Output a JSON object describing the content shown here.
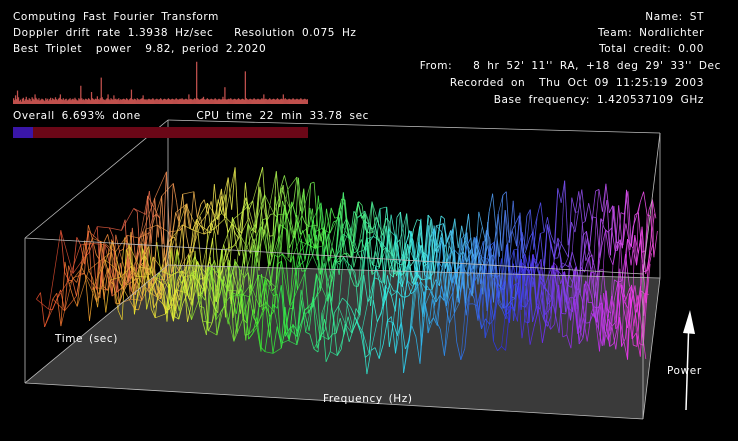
{
  "status": {
    "task": "Computing Fast Fourier Transform",
    "doppler_line": "Doppler drift rate 1.3938 Hz/sec   Resolution 0.075 Hz",
    "triplet_line": "Best Triplet  power  9.82, period 2.2020",
    "progress_line": "Overall 6.693% done        CPU time 22 min 33.78 sec",
    "progress_fraction": 0.0669,
    "progress_color": "#3a16a8",
    "progress_track_color": "#6b0717"
  },
  "user_info": {
    "name": "Name: ST",
    "team": "Team: Nordlichter",
    "credit": "Total credit: 0.00",
    "from": "From:   8 hr 52' 11'' RA, +18 deg 29' 33'' Dec",
    "recorded": "Recorded on  Thu Oct 09 11:25:19 2003",
    "base_frequency": "Base frequency: 1.420537109 GHz"
  },
  "triplet_graph": {
    "color": "#c0504d",
    "values": [
      0.12,
      0.08,
      0.18,
      0.1,
      0.28,
      0.14,
      0.06,
      0.09,
      0.05,
      0.11,
      0.13,
      0.07,
      0.1,
      0.15,
      0.09,
      0.08,
      0.12,
      0.1,
      0.06,
      0.14,
      0.11,
      0.09,
      0.2,
      0.13,
      0.1,
      0.08,
      0.12,
      0.07,
      0.09,
      0.11,
      0.1,
      0.08,
      0.06,
      0.12,
      0.09,
      0.11,
      0.07,
      0.1,
      0.13,
      0.08,
      0.12,
      0.1,
      0.09,
      0.14,
      0.1,
      0.08,
      0.11,
      0.13,
      0.2,
      0.1,
      0.09,
      0.12,
      0.08,
      0.1,
      0.11,
      0.07,
      0.09,
      0.1,
      0.12,
      0.08,
      0.1,
      0.11,
      0.09,
      0.13,
      0.1,
      0.08,
      0.07,
      0.12,
      0.1,
      0.38,
      0.12,
      0.09,
      0.1,
      0.08,
      0.11,
      0.1,
      0.09,
      0.12,
      0.1,
      0.08,
      0.25,
      0.12,
      0.1,
      0.09,
      0.11,
      0.1,
      0.16,
      0.1,
      0.09,
      0.12,
      0.55,
      0.14,
      0.1,
      0.09,
      0.08,
      0.1,
      0.12,
      0.2,
      0.1,
      0.08,
      0.12,
      0.1,
      0.09,
      0.18,
      0.1,
      0.11,
      0.09,
      0.1,
      0.12,
      0.08,
      0.1,
      0.09,
      0.1,
      0.11,
      0.1,
      0.09,
      0.12,
      0.1,
      0.08,
      0.1,
      0.12,
      0.3,
      0.1,
      0.09,
      0.11,
      0.1,
      0.08,
      0.12,
      0.1,
      0.09,
      0.1,
      0.11,
      0.12,
      0.18,
      0.1,
      0.09,
      0.1,
      0.08,
      0.1,
      0.11,
      0.1,
      0.09,
      0.1,
      0.12,
      0.1,
      0.08,
      0.1,
      0.11,
      0.1,
      0.09,
      0.1,
      0.12,
      0.1,
      0.08,
      0.1,
      0.11,
      0.1,
      0.09,
      0.1,
      0.12,
      0.1,
      0.09,
      0.1,
      0.11,
      0.1,
      0.09,
      0.1,
      0.12,
      0.1,
      0.09,
      0.1,
      0.11,
      0.1,
      0.12,
      0.1,
      0.09,
      0.1,
      0.11,
      0.1,
      0.09,
      0.2,
      0.1,
      0.11,
      0.1,
      0.09,
      0.1,
      0.12,
      0.1,
      0.88,
      0.12,
      0.1,
      0.09,
      0.1,
      0.11,
      0.12,
      0.15,
      0.1,
      0.09,
      0.1,
      0.12,
      0.1,
      0.09,
      0.1,
      0.11,
      0.1,
      0.09,
      0.1,
      0.12,
      0.1,
      0.08,
      0.1,
      0.11,
      0.1,
      0.09,
      0.1,
      0.15,
      0.1,
      0.35,
      0.1,
      0.09,
      0.1,
      0.11,
      0.1,
      0.12,
      0.1,
      0.09,
      0.1,
      0.11,
      0.1,
      0.09,
      0.1,
      0.12,
      0.1,
      0.09,
      0.1,
      0.11,
      0.1,
      0.09,
      0.68,
      0.12,
      0.1,
      0.09,
      0.1,
      0.11,
      0.1,
      0.09,
      0.1,
      0.12,
      0.1,
      0.09,
      0.1,
      0.11,
      0.1,
      0.09,
      0.1,
      0.12,
      0.1,
      0.2,
      0.1,
      0.11,
      0.1,
      0.09,
      0.1,
      0.12,
      0.1,
      0.09,
      0.1,
      0.11,
      0.1,
      0.09,
      0.1,
      0.12,
      0.1,
      0.09,
      0.1,
      0.11,
      0.1,
      0.2,
      0.1,
      0.12,
      0.1,
      0.09,
      0.1,
      0.11,
      0.1,
      0.09,
      0.1,
      0.12,
      0.1,
      0.09,
      0.1,
      0.11,
      0.1,
      0.09,
      0.1,
      0.12,
      0.1,
      0.09,
      0.1,
      0.11,
      0.1,
      0.09,
      0.1
    ]
  },
  "plot": {
    "xlabel": "Frequency (Hz)",
    "ylabel": "Time (sec)",
    "zlabel": "Power"
  }
}
